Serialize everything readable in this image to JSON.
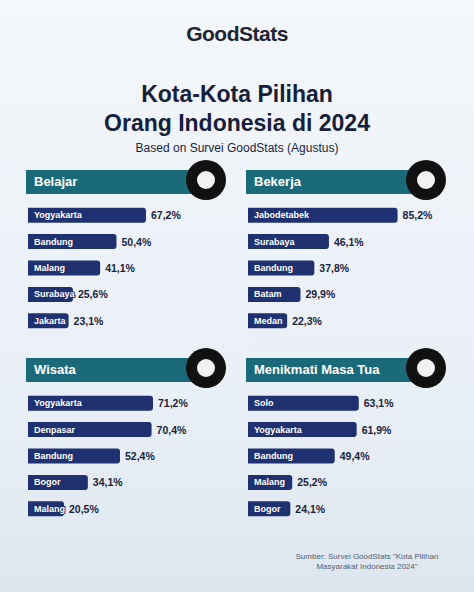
{
  "header": {
    "logo": "GoodStats",
    "title_lines": [
      "Kota-Kota Pilihan",
      "Orang Indonesia di 2024"
    ],
    "subtitle": "Based on Survei GoodStats (Agustus)"
  },
  "source": "Sumber: Survei GoodStats \"Kota Pilihan Masyarakat Indonesia 2024\"",
  "chart_data": [
    {
      "type": "bar",
      "title": "Belajar",
      "orientation": "horizontal",
      "categories": [
        "Yogyakarta",
        "Bandung",
        "Malang",
        "Surabaya",
        "Jakarta"
      ],
      "values": [
        67.2,
        50.4,
        41.1,
        25.6,
        23.1
      ],
      "value_labels": [
        "67,2%",
        "50,4%",
        "41,1%",
        "25,6%",
        "23,1%"
      ],
      "data_labels": true,
      "xlim": [
        0,
        90
      ],
      "tick_labels": "y",
      "grid": false,
      "color": "#1f3170"
    },
    {
      "type": "bar",
      "title": "Bekerja",
      "orientation": "horizontal",
      "categories": [
        "Jabodetabek",
        "Surabaya",
        "Bandung",
        "Batam",
        "Medan"
      ],
      "values": [
        85.2,
        46.1,
        37.8,
        29.9,
        22.3
      ],
      "value_labels": [
        "85,2%",
        "46,1%",
        "37,8%",
        "29,9%",
        "22,3%"
      ],
      "data_labels": true,
      "xlim": [
        0,
        90
      ],
      "tick_labels": "y",
      "grid": false,
      "color": "#1f3170"
    },
    {
      "type": "bar",
      "title": "Wisata",
      "orientation": "horizontal",
      "categories": [
        "Yogyakarta",
        "Denpasar",
        "Bandung",
        "Bogor",
        "Malang"
      ],
      "values": [
        71.2,
        70.4,
        52.4,
        34.1,
        20.5
      ],
      "value_labels": [
        "71,2%",
        "70,4%",
        "52,4%",
        "34,1%",
        "20,5%"
      ],
      "data_labels": true,
      "xlim": [
        0,
        90
      ],
      "tick_labels": "y",
      "grid": false,
      "color": "#1f3170"
    },
    {
      "type": "bar",
      "title": "Menikmati Masa Tua",
      "orientation": "horizontal",
      "categories": [
        "Solo",
        "Yogyakarta",
        "Bandung",
        "Malang",
        "Bogor"
      ],
      "values": [
        63.1,
        61.9,
        49.4,
        25.2,
        24.1
      ],
      "value_labels": [
        "63,1%",
        "61,9%",
        "49,4%",
        "25,2%",
        "24,1%"
      ],
      "data_labels": true,
      "xlim": [
        0,
        90
      ],
      "tick_labels": "y",
      "grid": false,
      "color": "#1f3170"
    }
  ]
}
